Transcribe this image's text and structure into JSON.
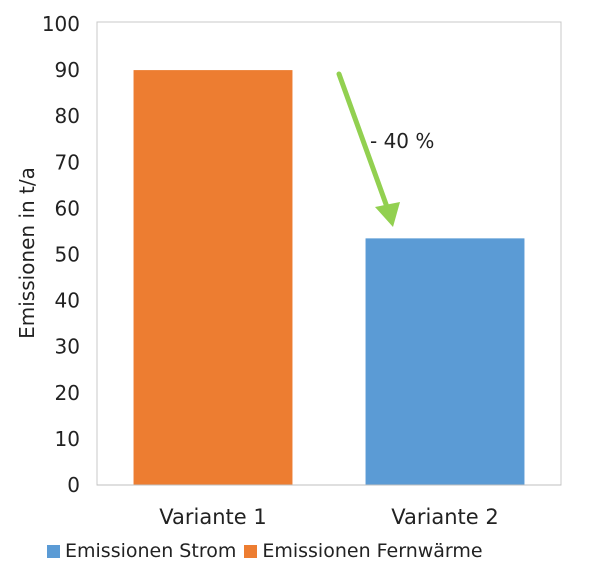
{
  "chart_data": {
    "type": "bar",
    "categories": [
      "Variante 1",
      "Variante 2"
    ],
    "series": [
      {
        "name": "Emissionen Strom",
        "color": "#5B9BD5",
        "values": [
          0,
          53.5
        ]
      },
      {
        "name": "Emissionen Fernwärme",
        "color": "#ED7D31",
        "values": [
          90,
          0
        ]
      }
    ],
    "title": "",
    "xlabel": "",
    "ylabel": "Emissionen in t/a",
    "ylim": [
      0,
      100
    ],
    "yticks": [
      "0",
      "10",
      "20",
      "30",
      "40",
      "50",
      "60",
      "70",
      "80",
      "90",
      "100"
    ],
    "annotation": {
      "text": "- 40 %",
      "color": "#92D050"
    },
    "grid": false,
    "legend_position": "bottom"
  }
}
